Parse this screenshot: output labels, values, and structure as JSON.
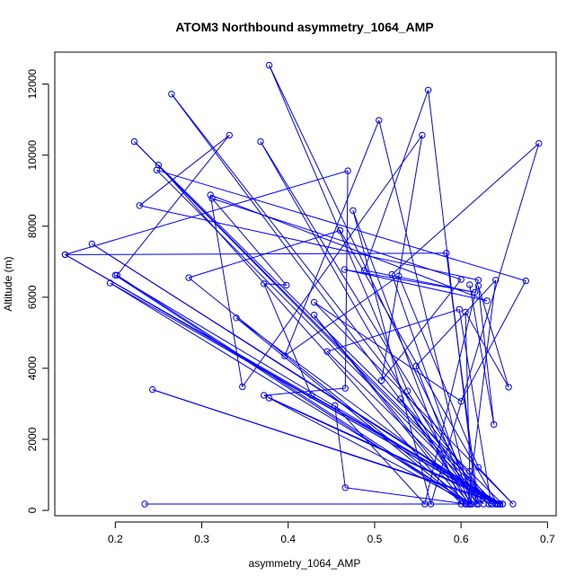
{
  "chart_data": {
    "type": "scatter",
    "title": "ATOM3 Northbound asymmetry_1064_AMP",
    "xlabel": "asymmetry_1064_AMP",
    "ylabel": "Altitude (m)",
    "xlim": [
      0.13,
      0.71
    ],
    "ylim": [
      -150,
      12900
    ],
    "x_ticks": [
      0.2,
      0.3,
      0.4,
      0.5,
      0.6,
      0.7
    ],
    "x_tick_labels": [
      "0.2",
      "0.3",
      "0.4",
      "0.5",
      "0.6",
      "0.7"
    ],
    "y_ticks": [
      0,
      2000,
      4000,
      6000,
      8000,
      10000,
      12000
    ],
    "y_tick_labels": [
      "0",
      "2000",
      "4000",
      "6000",
      "8000",
      "10000",
      "12000"
    ],
    "series_color": "#0000ff",
    "grid": false,
    "connected": true,
    "points": [
      [
        0.234,
        180
      ],
      [
        0.62,
        180
      ],
      [
        0.265,
        11720
      ],
      [
        0.636,
        180
      ],
      [
        0.222,
        10380
      ],
      [
        0.64,
        180
      ],
      [
        0.142,
        7200
      ],
      [
        0.645,
        180
      ],
      [
        0.173,
        7500
      ],
      [
        0.643,
        180
      ],
      [
        0.2,
        6620
      ],
      [
        0.606,
        180
      ],
      [
        0.466,
        640
      ],
      [
        0.454,
        2950
      ],
      [
        0.558,
        180
      ],
      [
        0.62,
        6480
      ],
      [
        0.228,
        8580
      ],
      [
        0.332,
        10560
      ],
      [
        0.202,
        6620
      ],
      [
        0.61,
        180
      ],
      [
        0.285,
        6550
      ],
      [
        0.46,
        7880
      ],
      [
        0.642,
        180
      ],
      [
        0.194,
        6400
      ],
      [
        0.612,
        180
      ],
      [
        0.378,
        3160
      ],
      [
        0.645,
        180
      ],
      [
        0.243,
        3400
      ],
      [
        0.648,
        180
      ],
      [
        0.372,
        3240
      ],
      [
        0.466,
        3440
      ],
      [
        0.469,
        9560
      ],
      [
        0.142,
        7200
      ],
      [
        0.583,
        7240
      ],
      [
        0.62,
        180
      ],
      [
        0.378,
        12530
      ],
      [
        0.538,
        3360
      ],
      [
        0.618,
        180
      ],
      [
        0.562,
        11830
      ],
      [
        0.488,
        6760
      ],
      [
        0.616,
        6140
      ],
      [
        0.465,
        6780
      ],
      [
        0.63,
        5900
      ],
      [
        0.31,
        8880
      ],
      [
        0.347,
        3480
      ],
      [
        0.555,
        10560
      ],
      [
        0.508,
        3660
      ],
      [
        0.6,
        6500
      ],
      [
        0.312,
        8780
      ],
      [
        0.398,
        6340
      ],
      [
        0.372,
        6380
      ],
      [
        0.427,
        3240
      ],
      [
        0.648,
        180
      ],
      [
        0.25,
        9720
      ],
      [
        0.6,
        180
      ],
      [
        0.475,
        8440
      ],
      [
        0.565,
        180
      ],
      [
        0.69,
        10330
      ],
      [
        0.52,
        6640
      ],
      [
        0.612,
        180
      ],
      [
        0.505,
        10980
      ],
      [
        0.396,
        4350
      ],
      [
        0.528,
        6600
      ],
      [
        0.62,
        1210
      ],
      [
        0.66,
        180
      ],
      [
        0.43,
        5860
      ],
      [
        0.6,
        3070
      ],
      [
        0.675,
        6460
      ],
      [
        0.248,
        9580
      ],
      [
        0.632,
        180
      ],
      [
        0.34,
        5420
      ],
      [
        0.605,
        180
      ],
      [
        0.43,
        5500
      ],
      [
        0.61,
        180
      ],
      [
        0.548,
        4060
      ],
      [
        0.64,
        6480
      ],
      [
        0.608,
        180
      ],
      [
        0.368,
        10380
      ],
      [
        0.626,
        180
      ],
      [
        0.445,
        4470
      ],
      [
        0.598,
        5660
      ],
      [
        0.635,
        180
      ],
      [
        0.53,
        3140
      ],
      [
        0.612,
        180
      ],
      [
        0.61,
        1100
      ],
      [
        0.605,
        5580
      ],
      [
        0.655,
        3470
      ],
      [
        0.62,
        6320
      ],
      [
        0.638,
        2420
      ],
      [
        0.61,
        6350
      ]
    ]
  }
}
